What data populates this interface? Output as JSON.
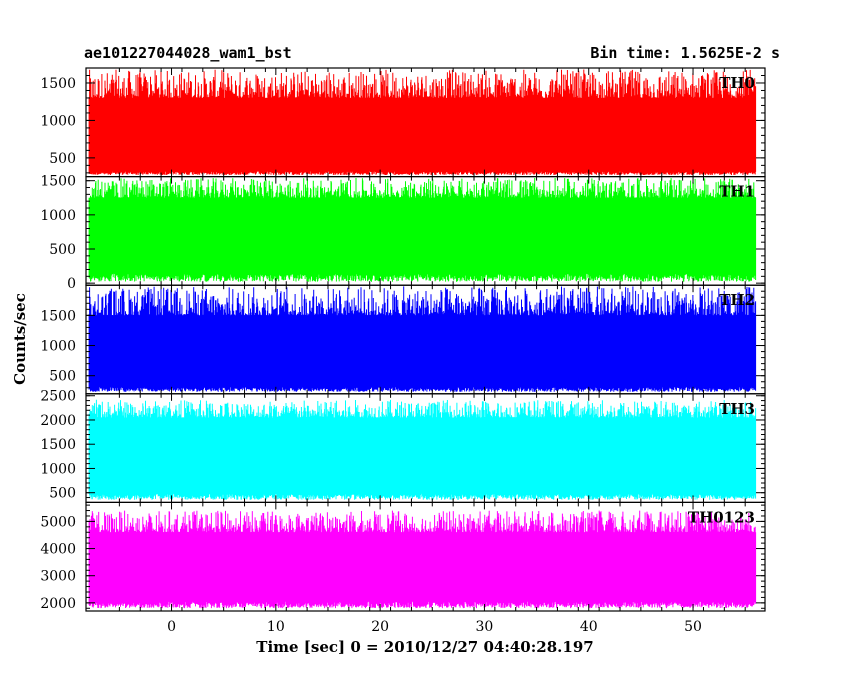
{
  "chart_data": {
    "type": "line",
    "title_left": "ae101227044028_wam1_bst",
    "title_right": "Bin time: 1.5625E-2 s",
    "xlabel": "Time [sec] 0 = 2010/12/27 04:40:28.197",
    "ylabel": "Counts/sec",
    "xlim": [
      -8.2,
      56.9
    ],
    "data_x_range": [
      -7.9,
      56.0
    ],
    "xticks": [
      0,
      10,
      20,
      30,
      40,
      50
    ],
    "panels": [
      {
        "name": "TH0",
        "color": "#ff0000",
        "ylim": [
          250,
          1700
        ],
        "yticks": [
          500,
          1000,
          1500
        ],
        "base_lo": 320,
        "base_hi": 1300,
        "spike_max": 1680
      },
      {
        "name": "TH1",
        "color": "#00ff00",
        "ylim": [
          -30,
          1560
        ],
        "yticks": [
          0,
          500,
          1000,
          1500
        ],
        "base_lo": 140,
        "base_hi": 1250,
        "spike_max": 1540
      },
      {
        "name": "TH2",
        "color": "#0000ff",
        "ylim": [
          200,
          2000
        ],
        "yticks": [
          500,
          1000,
          1500
        ],
        "base_lo": 310,
        "base_hi": 1500,
        "spike_max": 1980
      },
      {
        "name": "TH3",
        "color": "#00ffff",
        "ylim": [
          300,
          2540
        ],
        "yticks": [
          500,
          1000,
          1500,
          2000,
          2500
        ],
        "base_lo": 480,
        "base_hi": 2050,
        "spike_max": 2420
      },
      {
        "name": "TH0123",
        "color": "#ff00ff",
        "ylim": [
          1700,
          5700
        ],
        "yticks": [
          2000,
          3000,
          4000,
          5000
        ],
        "base_lo": 2050,
        "base_hi": 4600,
        "spike_max": 5400
      }
    ]
  }
}
